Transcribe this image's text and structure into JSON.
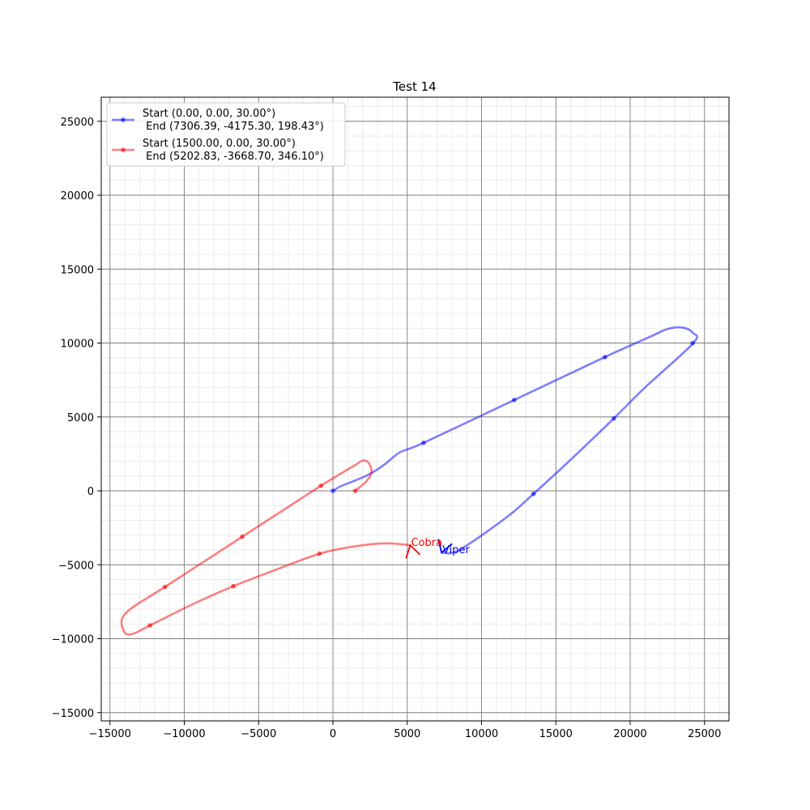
{
  "chart_data": {
    "type": "line",
    "title": "Test 14",
    "xlabel": "",
    "ylabel": "",
    "xlim": [
      -15000,
      26500
    ],
    "ylim": [
      -15500,
      26500
    ],
    "x_ticks": [
      -15000,
      -10000,
      -5000,
      0,
      5000,
      10000,
      15000,
      20000,
      25000
    ],
    "y_ticks": [
      -15000,
      -10000,
      -5000,
      0,
      5000,
      10000,
      15000,
      20000,
      25000
    ],
    "x_tick_labels": [
      "−15000",
      "−10000",
      "−5000",
      "0",
      "5000",
      "10000",
      "15000",
      "20000",
      "25000"
    ],
    "y_tick_labels": [
      "−15000",
      "−10000",
      "−5000",
      "0",
      "5000",
      "10000",
      "15000",
      "20000",
      "25000"
    ],
    "minor_step": 1000,
    "grid": true,
    "legend_position": "upper-left",
    "series": [
      {
        "name": "Start (0.00, 0.00, 30.00°)\n End  (7306.39, -4175.30, 198.43°)",
        "legend_line1": "Start (0.00, 0.00, 30.00°)",
        "legend_line2": " End  (7306.39, -4175.30, 198.43°)",
        "color": "#0000ff",
        "path": [
          [
            0,
            0
          ],
          [
            500,
            300
          ],
          [
            1500,
            700
          ],
          [
            2500,
            1150
          ],
          [
            3500,
            1800
          ],
          [
            4500,
            2600
          ],
          [
            6100,
            3250
          ],
          [
            12200,
            6150
          ],
          [
            18300,
            9050
          ],
          [
            21500,
            10500
          ],
          [
            22500,
            10950
          ],
          [
            23500,
            11050
          ],
          [
            24200,
            10700
          ],
          [
            24250,
            10000
          ],
          [
            21000,
            7000
          ],
          [
            18900,
            4900
          ],
          [
            16200,
            2300
          ],
          [
            13500,
            -200
          ],
          [
            11800,
            -1700
          ],
          [
            9000,
            -3700
          ],
          [
            8000,
            -4200
          ],
          [
            7306,
            -4175
          ]
        ],
        "markers": [
          [
            0,
            0
          ],
          [
            6100,
            3250
          ],
          [
            12200,
            6150
          ],
          [
            18300,
            9050
          ],
          [
            24200,
            10000
          ],
          [
            18900,
            4900
          ],
          [
            13500,
            -200
          ]
        ],
        "end_arrow": {
          "x": 7306.39,
          "y": -4175.3,
          "heading_deg": 198.43
        },
        "end_label": "Viper"
      },
      {
        "name": "Start (1500.00, 0.00, 30.00°)\n End  (5202.83, -3668.70, 346.10°)",
        "legend_line1": "Start (1500.00, 0.00, 30.00°)",
        "legend_line2": " End  (5202.83, -3668.70, 346.10°)",
        "color": "#ff0000",
        "path": [
          [
            1500,
            0
          ],
          [
            2300,
            700
          ],
          [
            2600,
            1300
          ],
          [
            2400,
            1900
          ],
          [
            2000,
            2050
          ],
          [
            1500,
            1750
          ],
          [
            -800,
            350
          ],
          [
            -6100,
            -3100
          ],
          [
            -11300,
            -6500
          ],
          [
            -13500,
            -7900
          ],
          [
            -14200,
            -8700
          ],
          [
            -14000,
            -9600
          ],
          [
            -13400,
            -9650
          ],
          [
            -12300,
            -9100
          ],
          [
            -9500,
            -7700
          ],
          [
            -6700,
            -6450
          ],
          [
            -4000,
            -5400
          ],
          [
            -900,
            -4250
          ],
          [
            1500,
            -3750
          ],
          [
            3500,
            -3550
          ],
          [
            5202,
            -3669
          ]
        ],
        "markers": [
          [
            1500,
            0
          ],
          [
            -800,
            350
          ],
          [
            -6100,
            -3100
          ],
          [
            -11300,
            -6500
          ],
          [
            -12300,
            -9100
          ],
          [
            -6700,
            -6450
          ],
          [
            -900,
            -4250
          ]
        ],
        "end_arrow": {
          "x": 5202.83,
          "y": -3668.7,
          "heading_deg": 346.1
        },
        "end_label": "Cobra"
      }
    ]
  }
}
